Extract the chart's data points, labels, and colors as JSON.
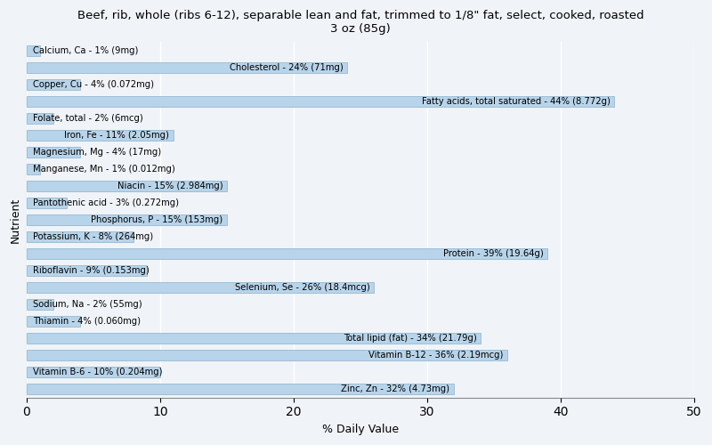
{
  "title": "Beef, rib, whole (ribs 6-12), separable lean and fat, trimmed to 1/8\" fat, select, cooked, roasted\n3 oz (85g)",
  "xlabel": "% Daily Value",
  "ylabel": "Nutrient",
  "xlim": [
    0,
    50
  ],
  "xticks": [
    0,
    10,
    20,
    30,
    40,
    50
  ],
  "background_color": "#f0f4f8",
  "bar_color": "#b8d4ea",
  "bar_edge_color": "#8ab0cc",
  "nutrients": [
    {
      "label": "Calcium, Ca - 1% (9mg)",
      "value": 1,
      "label_side": "left"
    },
    {
      "label": "Cholesterol - 24% (71mg)",
      "value": 24,
      "label_side": "right"
    },
    {
      "label": "Copper, Cu - 4% (0.072mg)",
      "value": 4,
      "label_side": "left"
    },
    {
      "label": "Fatty acids, total saturated - 44% (8.772g)",
      "value": 44,
      "label_side": "right"
    },
    {
      "label": "Folate, total - 2% (6mcg)",
      "value": 2,
      "label_side": "left"
    },
    {
      "label": "Iron, Fe - 11% (2.05mg)",
      "value": 11,
      "label_side": "right"
    },
    {
      "label": "Magnesium, Mg - 4% (17mg)",
      "value": 4,
      "label_side": "left"
    },
    {
      "label": "Manganese, Mn - 1% (0.012mg)",
      "value": 1,
      "label_side": "left"
    },
    {
      "label": "Niacin - 15% (2.984mg)",
      "value": 15,
      "label_side": "right"
    },
    {
      "label": "Pantothenic acid - 3% (0.272mg)",
      "value": 3,
      "label_side": "left"
    },
    {
      "label": "Phosphorus, P - 15% (153mg)",
      "value": 15,
      "label_side": "right"
    },
    {
      "label": "Potassium, K - 8% (264mg)",
      "value": 8,
      "label_side": "left"
    },
    {
      "label": "Protein - 39% (19.64g)",
      "value": 39,
      "label_side": "right"
    },
    {
      "label": "Riboflavin - 9% (0.153mg)",
      "value": 9,
      "label_side": "left"
    },
    {
      "label": "Selenium, Se - 26% (18.4mcg)",
      "value": 26,
      "label_side": "right"
    },
    {
      "label": "Sodium, Na - 2% (55mg)",
      "value": 2,
      "label_side": "left"
    },
    {
      "label": "Thiamin - 4% (0.060mg)",
      "value": 4,
      "label_side": "left"
    },
    {
      "label": "Total lipid (fat) - 34% (21.79g)",
      "value": 34,
      "label_side": "right"
    },
    {
      "label": "Vitamin B-12 - 36% (2.19mcg)",
      "value": 36,
      "label_side": "right"
    },
    {
      "label": "Vitamin B-6 - 10% (0.204mg)",
      "value": 10,
      "label_side": "left"
    },
    {
      "label": "Zinc, Zn - 32% (4.73mg)",
      "value": 32,
      "label_side": "right"
    }
  ]
}
